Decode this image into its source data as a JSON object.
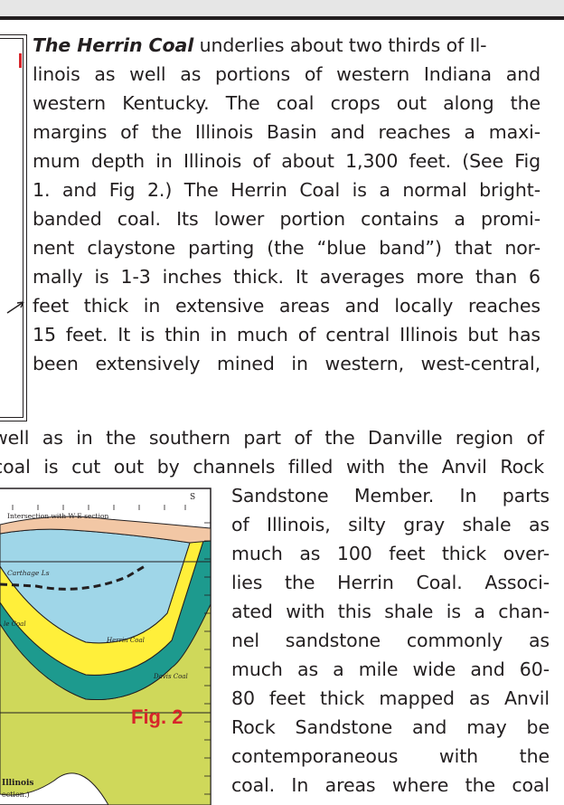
{
  "intro": {
    "lead": "The Herrin Coal",
    "lines_top": [
      " underlies about two thirds of Il-",
      "linois as well as portions of western Indiana and",
      "western Kentucky.  The coal crops out along the",
      "margins of the Illinois Basin and reaches a maxi-",
      "mum depth in Illinois of about 1,300 feet.  (See Fig",
      "1. and Fig 2.)  The Herrin Coal is a normal bright-",
      "banded coal. Its lower portion contains a promi-",
      "nent claystone parting (the “blue band”) that nor-",
      "mally is 1-3 inches thick.  It averages more than 6",
      "feet thick in extensive areas and locally reaches",
      "15 feet. It is thin in much of central Illinois but has",
      "been extensively mined in western, west-central,"
    ],
    "lines_full": [
      "well as in the southern part of the Danville region of",
      "coal is cut out by channels filled with the Anvil Rock"
    ],
    "lines_right": [
      "Sandstone Member. In parts",
      "of Illinois, silty gray shale as",
      "much as 100 feet thick over-",
      "lies the Herrin Coal. Associ-",
      "ated with this shale is a chan-",
      "nel sandstone commonly as",
      "much as a mile wide and 60-",
      "80 feet thick mapped as Anvil",
      "Rock Sandstone and may be",
      "contemporaneous with the",
      "coal.  In areas where the coal"
    ]
  },
  "figure2": {
    "label": "Fig. 2",
    "compass": "S",
    "intersection": "Intersection with W-E section",
    "carthage": "Carthage Ls",
    "herrin": "Herrin Coal",
    "springfield": "le Coal",
    "davis": "Davis Coal",
    "caption1": "Illinois",
    "caption2": "ection.)"
  },
  "colors": {
    "accent_red": "#d7262b",
    "blue_layer": "#9fd6e8",
    "yellow_layer": "#ffef3a",
    "teal_layer": "#1d9a8e",
    "green_layer": "#cfd85a",
    "tan_layer": "#f2c7a5"
  }
}
